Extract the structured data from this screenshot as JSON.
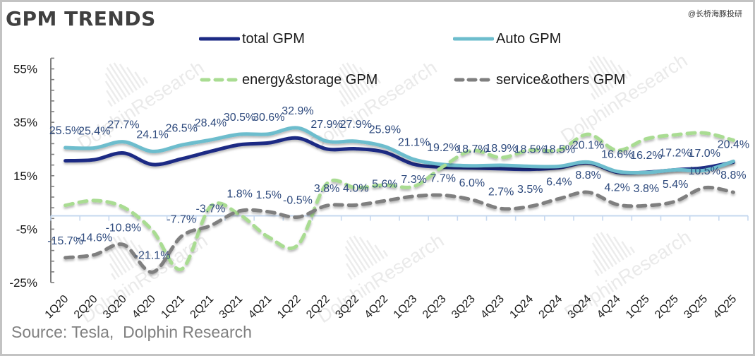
{
  "title": "GPM TRENDS",
  "watermark_handle": "@长桥海豚投研",
  "background_watermark": "DolphinResearch",
  "source": "Source: Tesla,  Dolphin Research",
  "chart_data": {
    "type": "line",
    "title": "GPM TRENDS",
    "xlabel": "",
    "ylabel": "",
    "smooth": true,
    "grid": false,
    "legend_position": "top",
    "categories": [
      "1Q20",
      "2Q20",
      "3Q20",
      "4Q20",
      "1Q21",
      "2Q21",
      "3Q21",
      "4Q21",
      "1Q22",
      "2Q22",
      "3Q22",
      "4Q22",
      "1Q23",
      "2Q23",
      "3Q23",
      "4Q23",
      "1Q24",
      "2Q24",
      "3Q24",
      "4Q24",
      "1Q25",
      "2Q25",
      "3Q25",
      "4Q25"
    ],
    "ylim": [
      -25,
      59
    ],
    "y_ticks": [
      55,
      35,
      15,
      -5,
      -25
    ],
    "y_tick_labels": [
      "55%",
      "35%",
      "15%",
      "-5%",
      "-25%"
    ],
    "y_minor_unit": 4,
    "data_label_color": "#2e4a7d",
    "series": [
      {
        "name": "total GPM",
        "color": "#1c2a84",
        "style": "solid",
        "values": [
          20.6,
          21.0,
          23.5,
          19.2,
          21.3,
          24.1,
          26.6,
          27.3,
          29.1,
          25.0,
          25.1,
          23.8,
          19.3,
          18.2,
          17.9,
          17.6,
          17.4,
          18.0,
          19.8,
          16.3,
          16.3,
          17.2,
          18.0,
          20.1
        ]
      },
      {
        "name": "Auto GPM",
        "color": "#6dbdcd",
        "style": "solid",
        "values": [
          25.5,
          25.4,
          27.7,
          24.1,
          26.5,
          28.4,
          30.5,
          30.6,
          32.9,
          27.9,
          27.9,
          25.9,
          21.1,
          19.2,
          18.7,
          18.9,
          18.5,
          18.5,
          20.1,
          16.6,
          16.2,
          17.2,
          17.0,
          20.4
        ],
        "labels": [
          "25.5%",
          "25.4%",
          "27.7%",
          "24.1%",
          "26.5%",
          "28.4%",
          "30.5%",
          "30.6%",
          "32.9%",
          "27.9%",
          "27.9%",
          "25.9%",
          "21.1%",
          "19.2%",
          "18.7%",
          "18.9%",
          "18.5%",
          "18.5%",
          "20.1%",
          "16.6%",
          "16.2%",
          "17.2%",
          "17.0%",
          "20.4%"
        ]
      },
      {
        "name": "energy&storage GPM",
        "color": "#a9dc92",
        "style": "dashed",
        "values": [
          3.9,
          5.7,
          3.2,
          -5.5,
          -20.0,
          3.5,
          0.4,
          -8.0,
          -11.0,
          12.0,
          10.5,
          11.5,
          11.0,
          18.4,
          24.4,
          21.8,
          24.6,
          24.6,
          30.5,
          24.5,
          28.8,
          30.3,
          31.0,
          28.3
        ]
      },
      {
        "name": "service&others GPM",
        "color": "#7f7f7f",
        "style": "dashed",
        "values": [
          -15.7,
          -14.6,
          -10.8,
          -21.1,
          -7.7,
          -3.7,
          1.8,
          1.5,
          -0.5,
          3.8,
          4.0,
          5.6,
          7.3,
          7.7,
          6.0,
          2.7,
          3.5,
          6.4,
          8.8,
          4.2,
          3.8,
          5.4,
          10.5,
          8.8
        ],
        "labels": [
          "-15.7%",
          "-14.6%",
          "-10.8%",
          "-21.1%",
          "-7.7%",
          "-3.7%",
          "1.8%",
          "1.5%",
          "-0.5%",
          "3.8%",
          "4.0%",
          "5.6%",
          "7.3%",
          "7.7%",
          "6.0%",
          "2.7%",
          "3.5%",
          "6.4%",
          "8.8%",
          "4.2%",
          "3.8%",
          "5.4%",
          "10.5%",
          "8.8%"
        ]
      }
    ]
  }
}
